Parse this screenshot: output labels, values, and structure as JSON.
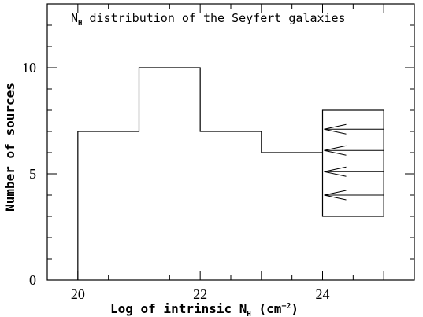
{
  "chart_data": {
    "type": "bar",
    "title": {
      "prefix": "N",
      "sub": "H",
      "rest": " distribution of the Seyfert galaxies"
    },
    "xlabel": {
      "prefix": "Log of intrinsic N",
      "sub": "H",
      "mid": " (cm",
      "sup": "−2",
      "suffix": ")"
    },
    "ylabel": "Number of sources",
    "xlim": [
      19.5,
      25.5
    ],
    "ylim": [
      0,
      13
    ],
    "x_ticks": [
      20,
      22,
      24
    ],
    "y_ticks": [
      0,
      5,
      10
    ],
    "bins": [
      {
        "x0": 20,
        "x1": 21,
        "value": 7
      },
      {
        "x0": 21,
        "x1": 22,
        "value": 10
      },
      {
        "x0": 22,
        "x1": 23,
        "value": 7
      },
      {
        "x0": 23,
        "x1": 24,
        "value": 6
      }
    ],
    "upper_limit_box": {
      "x0": 24,
      "x1": 25,
      "low": 3,
      "high": 8
    },
    "arrows_y": [
      7.1,
      6.1,
      5.1,
      4.0
    ],
    "grid": false
  }
}
